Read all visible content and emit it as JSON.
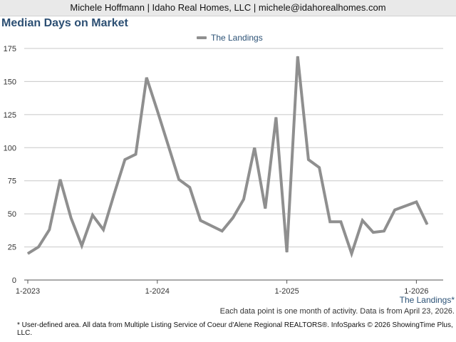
{
  "header": {
    "contact": "Michele Hoffmann | Idaho Real Homes, LLC | michele@idahorealhomes.com"
  },
  "chart_data": {
    "type": "line",
    "title": "Median Days on Market",
    "xlabel": "",
    "ylabel": "",
    "ylim": [
      0,
      175
    ],
    "yticks": [
      0,
      25,
      50,
      75,
      100,
      125,
      150,
      175
    ],
    "grid": true,
    "legend_position": "top-center",
    "x_tick_labels": [
      "1-2023",
      "1-2024",
      "1-2025",
      "1-2026"
    ],
    "x": [
      "1-2023",
      "2-2023",
      "3-2023",
      "4-2023",
      "5-2023",
      "6-2023",
      "7-2023",
      "8-2023",
      "9-2023",
      "10-2023",
      "11-2023",
      "12-2023",
      "1-2024",
      "2-2024",
      "3-2024",
      "4-2024",
      "5-2024",
      "6-2024",
      "7-2024",
      "8-2024",
      "9-2024",
      "10-2024",
      "11-2024",
      "12-2024",
      "1-2025",
      "2-2025",
      "3-2025",
      "4-2025",
      "5-2025",
      "6-2025",
      "7-2025",
      "8-2025",
      "9-2025",
      "10-2025",
      "11-2025",
      "12-2025",
      "1-2026",
      "2-2026"
    ],
    "series": [
      {
        "name": "The Landings",
        "color": "#8f8f8f",
        "values": [
          20,
          25,
          38,
          76,
          47,
          26,
          49,
          38,
          65,
          91,
          95,
          153,
          128,
          102,
          76,
          70,
          45,
          null,
          37,
          47,
          61,
          100,
          54,
          123,
          21,
          169,
          91,
          85,
          44,
          44,
          20,
          45,
          36,
          37,
          53,
          null,
          59,
          42
        ]
      }
    ]
  },
  "area_label": "The Landings*",
  "note": "Each data point is one month of activity. Data is from April 23, 2026.",
  "footer": "* User-defined area. All data from Multiple Listing Service of Coeur d'Alene Regional REALTORS®. InfoSparks © 2026 ShowingTime Plus, LLC."
}
